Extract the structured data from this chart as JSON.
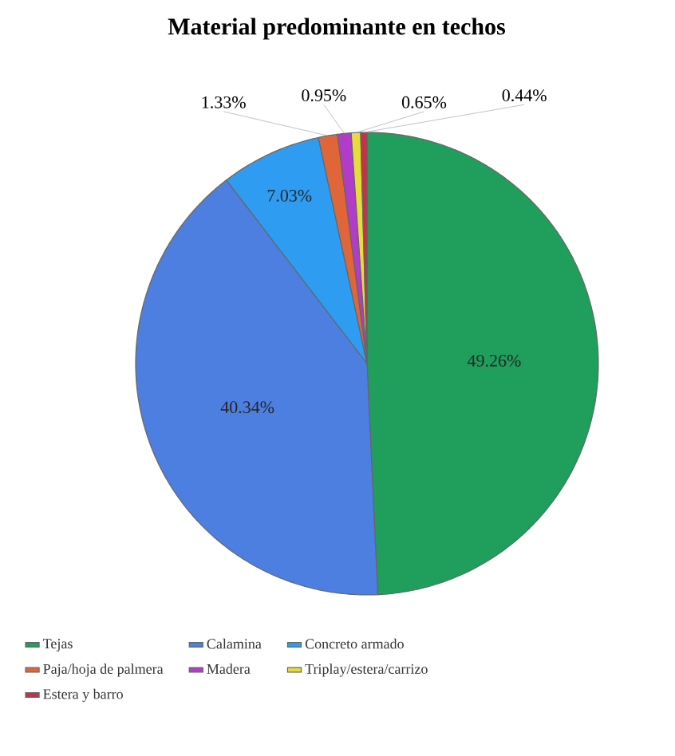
{
  "chart_data": {
    "type": "pie",
    "title": "Material predominante en techos",
    "categories": [
      "Tejas",
      "Calamina",
      "Concreto armado",
      "Paja/hoja de palmera",
      "Madera",
      "Triplay/estera/carrizo",
      "Estera y barro"
    ],
    "values": [
      49.26,
      40.34,
      7.03,
      1.33,
      0.95,
      0.65,
      0.44
    ],
    "colors": [
      "#1f9e5c",
      "#4d7fe0",
      "#2e9cf0",
      "#e0663a",
      "#b03cc8",
      "#e8dc3c",
      "#c8304a"
    ],
    "value_labels": [
      "49.26%",
      "40.34%",
      "7.03%",
      "1.33%",
      "0.95%",
      "0.65%",
      "0.44%"
    ],
    "legend": "bottom"
  }
}
